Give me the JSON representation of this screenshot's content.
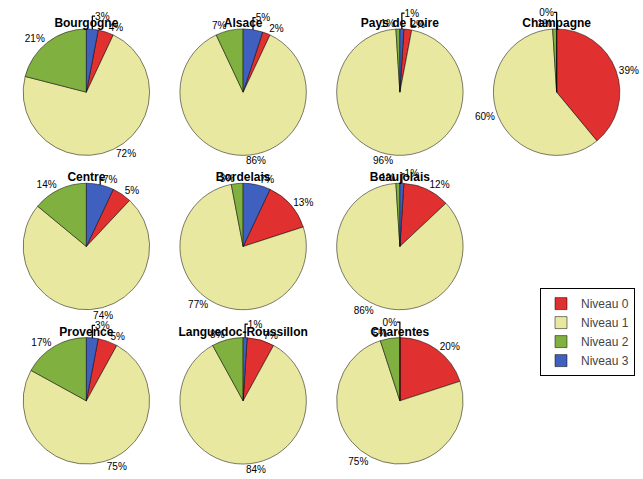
{
  "chart_data": [
    {
      "type": "pie",
      "title": "Bourgogne",
      "categories": [
        "Niveau 0",
        "Niveau 1",
        "Niveau 2",
        "Niveau 3"
      ],
      "values": [
        4,
        72,
        21,
        3
      ],
      "value_labels": [
        "4%",
        "72%",
        "21%",
        "3%"
      ],
      "colors": [
        "#e03030",
        "#e8e8a0",
        "#80b040",
        "#4060c0"
      ],
      "data_labels": true,
      "legend": "right"
    },
    {
      "type": "pie",
      "title": "Alsace",
      "categories": [
        "Niveau 0",
        "Niveau 1",
        "Niveau 2",
        "Niveau 3"
      ],
      "values": [
        2,
        86,
        7,
        5
      ],
      "value_labels": [
        "2%",
        "86%",
        "7%",
        "5%"
      ],
      "colors": [
        "#e03030",
        "#e8e8a0",
        "#80b040",
        "#4060c0"
      ],
      "data_labels": true,
      "legend": "right"
    },
    {
      "type": "pie",
      "title": "Pays de Loire",
      "categories": [
        "Niveau 0",
        "Niveau 1",
        "Niveau 2",
        "Niveau 3"
      ],
      "values": [
        2,
        96,
        1,
        1
      ],
      "value_labels": [
        "2%",
        "96%",
        "1%",
        "1%"
      ],
      "colors": [
        "#e03030",
        "#e8e8a0",
        "#80b040",
        "#4060c0"
      ],
      "data_labels": true,
      "legend": "right"
    },
    {
      "type": "pie",
      "title": "Champagne",
      "categories": [
        "Niveau 0",
        "Niveau 1",
        "Niveau 2",
        "Niveau 3"
      ],
      "values": [
        39,
        60,
        1,
        0
      ],
      "value_labels": [
        "39%",
        "60%",
        "1%",
        "0%"
      ],
      "colors": [
        "#e03030",
        "#e8e8a0",
        "#80b040",
        "#4060c0"
      ],
      "data_labels": true,
      "legend": "right"
    },
    {
      "type": "pie",
      "title": "Centre",
      "categories": [
        "Niveau 0",
        "Niveau 1",
        "Niveau 2",
        "Niveau 3"
      ],
      "values": [
        5,
        74,
        14,
        7
      ],
      "value_labels": [
        "5%",
        "74%",
        "14%",
        "7%"
      ],
      "colors": [
        "#e03030",
        "#e8e8a0",
        "#80b040",
        "#4060c0"
      ],
      "data_labels": true,
      "legend": "right"
    },
    {
      "type": "pie",
      "title": "Bordelais",
      "categories": [
        "Niveau 0",
        "Niveau 1",
        "Niveau 2",
        "Niveau 3"
      ],
      "values": [
        13,
        77,
        3,
        7
      ],
      "value_labels": [
        "13%",
        "77%",
        "3%",
        "7%"
      ],
      "colors": [
        "#e03030",
        "#e8e8a0",
        "#80b040",
        "#4060c0"
      ],
      "data_labels": true,
      "legend": "right"
    },
    {
      "type": "pie",
      "title": "Beaujolais",
      "categories": [
        "Niveau 0",
        "Niveau 1",
        "Niveau 2",
        "Niveau 3"
      ],
      "values": [
        12,
        86,
        1,
        1
      ],
      "value_labels": [
        "12%",
        "86%",
        "1%",
        "1%"
      ],
      "colors": [
        "#e03030",
        "#e8e8a0",
        "#80b040",
        "#4060c0"
      ],
      "data_labels": true,
      "legend": "right"
    },
    {
      "type": "pie",
      "title": "Provence",
      "categories": [
        "Niveau 0",
        "Niveau 1",
        "Niveau 2",
        "Niveau 3"
      ],
      "values": [
        5,
        75,
        17,
        3
      ],
      "value_labels": [
        "5%",
        "75%",
        "17%",
        "3%"
      ],
      "colors": [
        "#e03030",
        "#e8e8a0",
        "#80b040",
        "#4060c0"
      ],
      "data_labels": true,
      "legend": "right"
    },
    {
      "type": "pie",
      "title": "Languedoc-Roussillon",
      "categories": [
        "Niveau 0",
        "Niveau 1",
        "Niveau 2",
        "Niveau 3"
      ],
      "values": [
        7,
        84,
        8,
        1
      ],
      "value_labels": [
        "7%",
        "84%",
        "8%",
        "1%"
      ],
      "colors": [
        "#e03030",
        "#e8e8a0",
        "#80b040",
        "#4060c0"
      ],
      "data_labels": true,
      "legend": "right"
    },
    {
      "type": "pie",
      "title": "Charentes",
      "categories": [
        "Niveau 0",
        "Niveau 1",
        "Niveau 2",
        "Niveau 3"
      ],
      "values": [
        20,
        75,
        5,
        0
      ],
      "value_labels": [
        "20%",
        "75%",
        "5%",
        "0%"
      ],
      "colors": [
        "#e03030",
        "#e8e8a0",
        "#80b040",
        "#4060c0"
      ],
      "data_labels": true,
      "legend": "right"
    }
  ]
}
